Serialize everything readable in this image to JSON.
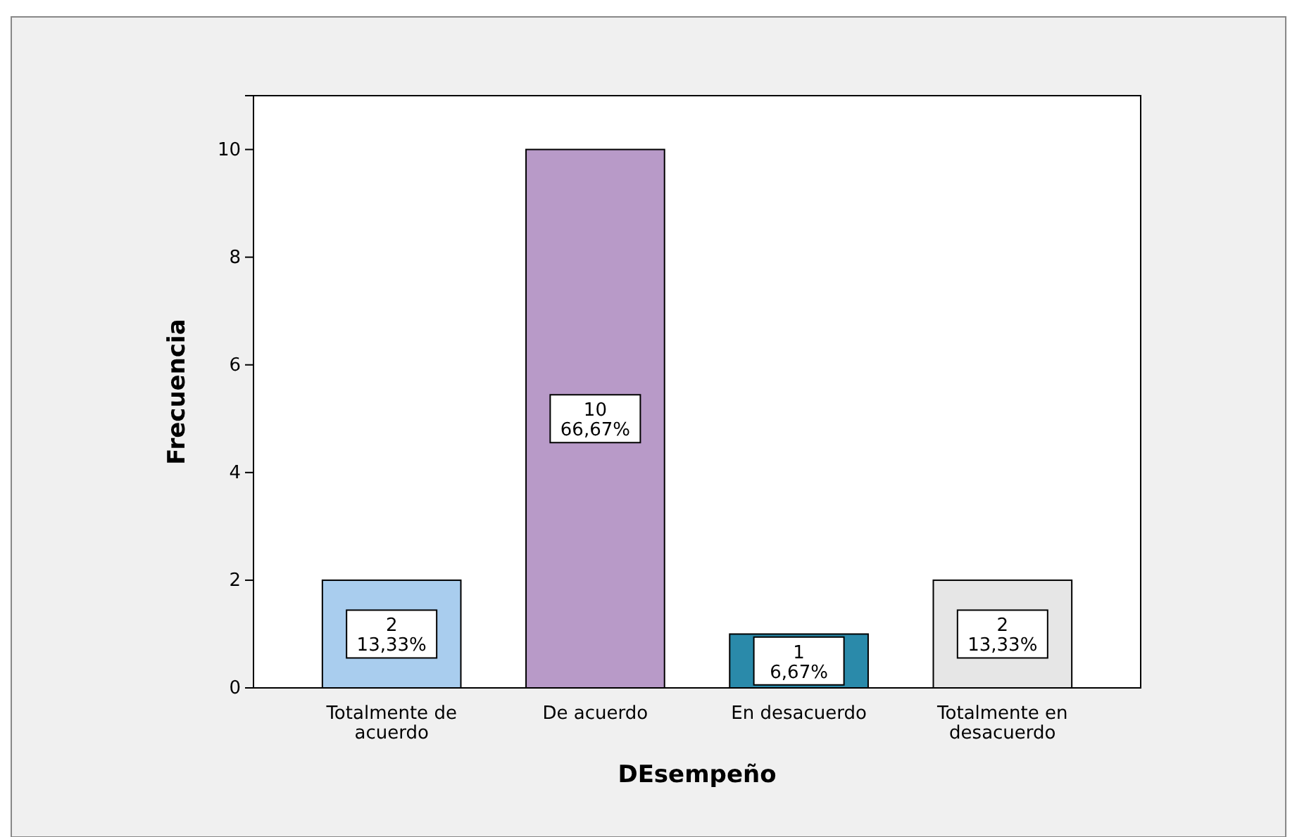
{
  "chart_data": {
    "type": "bar",
    "xlabel": "DEsempeño",
    "ylabel": "Frecuencia",
    "categories": [
      "Totalmente de acuerdo",
      "De acuerdo",
      "En desacuerdo",
      "Totalmente en desacuerdo"
    ],
    "values": [
      2,
      10,
      1,
      2
    ],
    "colors": [
      "#a9cdee",
      "#b89ac8",
      "#2a8aaa",
      "#e6e6e6"
    ],
    "value_labels": [
      "2\n13,33%",
      "10\n66,67%",
      "1\n6,67%",
      "2\n13,33%"
    ],
    "ylim": [
      0,
      11
    ],
    "yticks": [
      0,
      2,
      4,
      6,
      8,
      10
    ]
  }
}
